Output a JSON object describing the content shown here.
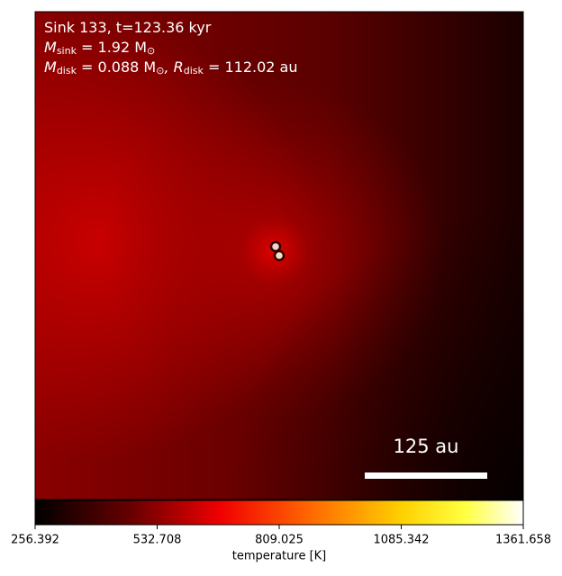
{
  "chart_data": {
    "type": "image",
    "annotations": [
      [
        {
          "text": "Sink 133, t=123.36 kyr"
        }
      ],
      [
        {
          "text": "M"
        },
        {
          "sub": "sink"
        },
        {
          "text": " = 1.92 M"
        },
        {
          "sub": "⊙"
        }
      ],
      [
        {
          "text": "M"
        },
        {
          "sub": "disk"
        },
        {
          "text": " = 0.088 M"
        },
        {
          "sub": "⊙"
        },
        {
          "text": ", R"
        },
        {
          "sub": "disk"
        },
        {
          "text": " = 112.02 au"
        }
      ]
    ],
    "scale_bar_label": "125 au",
    "colorbar": {
      "label": "temperature [K]",
      "clim": [
        256.392,
        1361.658
      ],
      "ticks": [
        256.392,
        532.708,
        809.025,
        1085.342,
        1361.658
      ]
    }
  }
}
